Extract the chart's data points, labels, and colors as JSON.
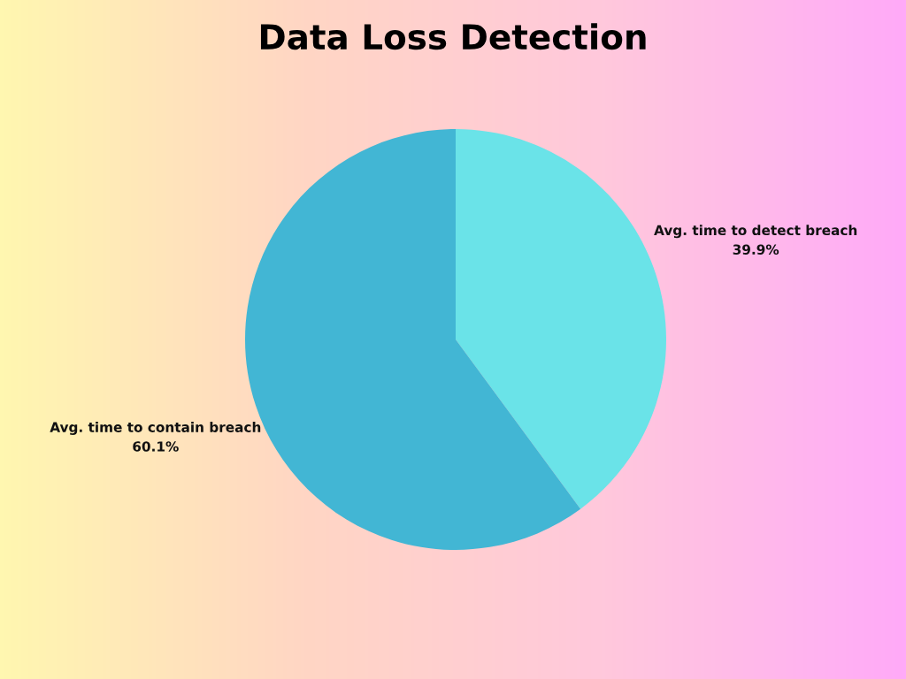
{
  "chart_data": {
    "type": "pie",
    "title": "Data Loss Detection",
    "categories": [
      "Avg. time to detect breach",
      "Avg. time to contain breach"
    ],
    "values": [
      39.9,
      60.1
    ],
    "value_labels": [
      "39.9%",
      "60.1%"
    ],
    "colors": [
      "#6ae3e8",
      "#42b6d4"
    ],
    "legend": false
  }
}
